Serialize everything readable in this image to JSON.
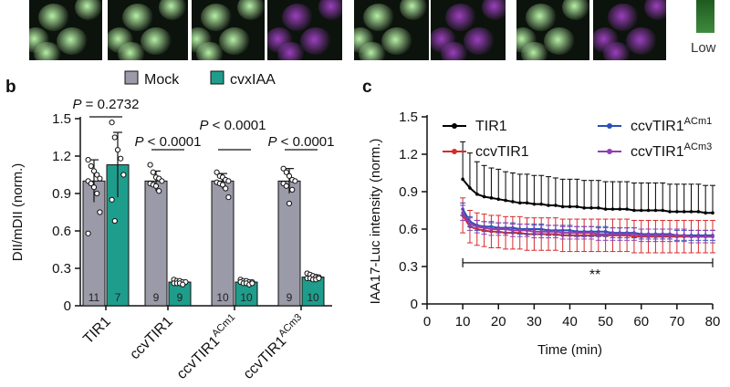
{
  "microscopy": {
    "scale_label": "Low",
    "colors": {
      "green": "#b7f0a6",
      "magenta": "#9c3fbf",
      "bg": "#0c130c"
    }
  },
  "panel_b": {
    "label": "b",
    "legend": [
      {
        "name": "Mock",
        "color": "#9a9aa8"
      },
      {
        "name": "cvxIAA",
        "color": "#1f9d8c"
      }
    ],
    "ylabel": "DII/mDII (norm.)",
    "ylim": [
      0,
      1.5
    ],
    "yticks": [
      "0",
      "0.3",
      "0.6",
      "0.9",
      "1.2",
      "1.5"
    ],
    "groups": [
      {
        "label": "TIR1",
        "sup": "",
        "mock": 1.0,
        "mock_err": 0.17,
        "treat": 1.13,
        "treat_err": 0.26,
        "n_mock": "11",
        "n_treat": "7"
      },
      {
        "label": "ccvTIR1",
        "sup": "",
        "mock": 1.0,
        "mock_err": 0.08,
        "treat": 0.19,
        "treat_err": 0.01,
        "n_mock": "9",
        "n_treat": "9"
      },
      {
        "label": "ccvTIR1",
        "sup": "ACm1",
        "mock": 1.0,
        "mock_err": 0.06,
        "treat": 0.19,
        "treat_err": 0.01,
        "n_mock": "10",
        "n_treat": "10"
      },
      {
        "label": "ccvTIR1",
        "sup": "ACm3",
        "mock": 1.0,
        "mock_err": 0.1,
        "treat": 0.23,
        "treat_err": 0.02,
        "n_mock": "9",
        "n_treat": "10"
      }
    ],
    "points": [
      [
        [
          1.17,
          1.12,
          1.08,
          1.05,
          1.02,
          1.0,
          0.98,
          0.95,
          0.9,
          0.75,
          0.58
        ],
        [
          1.47,
          1.35,
          1.25,
          1.18,
          1.05,
          0.85,
          0.68
        ]
      ],
      [
        [
          1.13,
          1.07,
          1.03,
          1.02,
          1.0,
          0.98,
          0.97,
          0.96,
          0.92
        ],
        [
          0.21,
          0.2,
          0.2,
          0.19,
          0.19,
          0.18,
          0.18,
          0.18,
          0.17
        ]
      ],
      [
        [
          1.07,
          1.04,
          1.03,
          1.01,
          1.0,
          0.99,
          0.98,
          0.97,
          0.94,
          0.87
        ],
        [
          0.21,
          0.2,
          0.2,
          0.19,
          0.19,
          0.19,
          0.18,
          0.18,
          0.17,
          0.18
        ]
      ],
      [
        [
          1.1,
          1.07,
          1.04,
          1.01,
          1.0,
          0.98,
          0.96,
          0.82,
          0.93
        ],
        [
          0.26,
          0.25,
          0.24,
          0.23,
          0.23,
          0.22,
          0.22,
          0.21,
          0.21,
          0.22
        ]
      ]
    ],
    "annotations": [
      {
        "text": "P = 0.2732",
        "group_from": 0,
        "group_to": 0
      },
      {
        "text": "P < 0.0001",
        "group_from": 1,
        "group_to": 1
      },
      {
        "text": "P < 0.0001",
        "group_from": 2,
        "group_to": 2
      },
      {
        "text": "P < 0.0001",
        "group_from": 3,
        "group_to": 3
      }
    ]
  },
  "panel_c": {
    "label": "c",
    "ylabel": "IAA17-Luc intensity (norm.)",
    "xlabel": "Time (min)",
    "xlim": [
      0,
      80
    ],
    "ylim": [
      0,
      1.5
    ],
    "xticks": [
      "0",
      "10",
      "20",
      "30",
      "40",
      "50",
      "60",
      "70",
      "80"
    ],
    "yticks": [
      "0",
      "0.3",
      "0.6",
      "0.9",
      "1.2",
      "1.5"
    ],
    "significance": "**",
    "sig_range": [
      10,
      80
    ],
    "sig_y": 0.33
  },
  "chart_data": {
    "type": "line",
    "title": "",
    "xlabel": "Time (min)",
    "ylabel": "IAA17-Luc intensity (norm.)",
    "xlim": [
      0,
      80
    ],
    "ylim": [
      0,
      1.5
    ],
    "x": [
      10,
      12,
      14,
      16,
      18,
      20,
      22,
      24,
      26,
      28,
      30,
      32,
      34,
      36,
      38,
      40,
      42,
      44,
      46,
      48,
      50,
      52,
      54,
      56,
      58,
      60,
      62,
      64,
      66,
      68,
      70,
      72,
      74,
      76,
      78,
      80
    ],
    "series": [
      {
        "name": "TIR1",
        "sup": "",
        "color": "#000000",
        "values": [
          1.0,
          0.93,
          0.88,
          0.86,
          0.85,
          0.84,
          0.83,
          0.82,
          0.81,
          0.81,
          0.8,
          0.8,
          0.79,
          0.79,
          0.78,
          0.78,
          0.78,
          0.77,
          0.77,
          0.77,
          0.76,
          0.76,
          0.76,
          0.76,
          0.75,
          0.75,
          0.75,
          0.75,
          0.75,
          0.74,
          0.74,
          0.74,
          0.74,
          0.74,
          0.73,
          0.73
        ],
        "err": [
          0.3,
          0.28,
          0.26,
          0.25,
          0.24,
          0.24,
          0.23,
          0.23,
          0.23,
          0.23,
          0.23,
          0.23,
          0.23,
          0.22,
          0.22,
          0.22,
          0.22,
          0.22,
          0.22,
          0.22,
          0.22,
          0.22,
          0.22,
          0.22,
          0.22,
          0.22,
          0.22,
          0.22,
          0.22,
          0.22,
          0.22,
          0.22,
          0.22,
          0.22,
          0.22,
          0.22
        ]
      },
      {
        "name": "ccvTIR1",
        "sup": "",
        "color": "#d62a2a",
        "values": [
          0.71,
          0.62,
          0.6,
          0.59,
          0.58,
          0.58,
          0.57,
          0.57,
          0.57,
          0.56,
          0.56,
          0.56,
          0.56,
          0.56,
          0.55,
          0.55,
          0.55,
          0.55,
          0.55,
          0.55,
          0.55,
          0.55,
          0.55,
          0.55,
          0.54,
          0.54,
          0.54,
          0.54,
          0.54,
          0.54,
          0.54,
          0.54,
          0.54,
          0.54,
          0.54,
          0.54
        ],
        "err": [
          0.14,
          0.13,
          0.13,
          0.13,
          0.13,
          0.13,
          0.13,
          0.13,
          0.13,
          0.13,
          0.13,
          0.13,
          0.13,
          0.13,
          0.13,
          0.13,
          0.13,
          0.13,
          0.13,
          0.13,
          0.13,
          0.13,
          0.13,
          0.13,
          0.13,
          0.13,
          0.13,
          0.13,
          0.13,
          0.13,
          0.13,
          0.13,
          0.13,
          0.13,
          0.13,
          0.13
        ]
      },
      {
        "name": "ccvTIR1",
        "sup": "ACm1",
        "color": "#2a4fb5",
        "values": [
          0.76,
          0.66,
          0.63,
          0.62,
          0.62,
          0.61,
          0.61,
          0.61,
          0.6,
          0.6,
          0.6,
          0.6,
          0.59,
          0.59,
          0.59,
          0.59,
          0.58,
          0.58,
          0.58,
          0.58,
          0.58,
          0.57,
          0.57,
          0.57,
          0.57,
          0.56,
          0.56,
          0.56,
          0.56,
          0.56,
          0.55,
          0.55,
          0.55,
          0.55,
          0.55,
          0.55
        ],
        "err": [
          0.05,
          0.04,
          0.04,
          0.04,
          0.04,
          0.04,
          0.04,
          0.04,
          0.04,
          0.04,
          0.04,
          0.04,
          0.04,
          0.04,
          0.04,
          0.04,
          0.04,
          0.04,
          0.04,
          0.04,
          0.04,
          0.04,
          0.04,
          0.04,
          0.04,
          0.04,
          0.04,
          0.04,
          0.04,
          0.04,
          0.04,
          0.04,
          0.04,
          0.04,
          0.04,
          0.04
        ]
      },
      {
        "name": "ccvTIR1",
        "sup": "ACm3",
        "color": "#8e3fb0",
        "values": [
          0.73,
          0.64,
          0.62,
          0.61,
          0.6,
          0.6,
          0.6,
          0.59,
          0.59,
          0.59,
          0.58,
          0.58,
          0.58,
          0.58,
          0.57,
          0.57,
          0.57,
          0.57,
          0.57,
          0.56,
          0.56,
          0.56,
          0.56,
          0.56,
          0.56,
          0.55,
          0.55,
          0.55,
          0.55,
          0.55,
          0.55,
          0.55,
          0.54,
          0.54,
          0.54,
          0.54
        ],
        "err": [
          0.06,
          0.05,
          0.05,
          0.05,
          0.05,
          0.05,
          0.05,
          0.05,
          0.05,
          0.05,
          0.05,
          0.05,
          0.05,
          0.05,
          0.05,
          0.05,
          0.05,
          0.05,
          0.05,
          0.05,
          0.05,
          0.05,
          0.05,
          0.05,
          0.05,
          0.05,
          0.05,
          0.05,
          0.05,
          0.05,
          0.05,
          0.05,
          0.05,
          0.05,
          0.05,
          0.05
        ]
      }
    ]
  }
}
